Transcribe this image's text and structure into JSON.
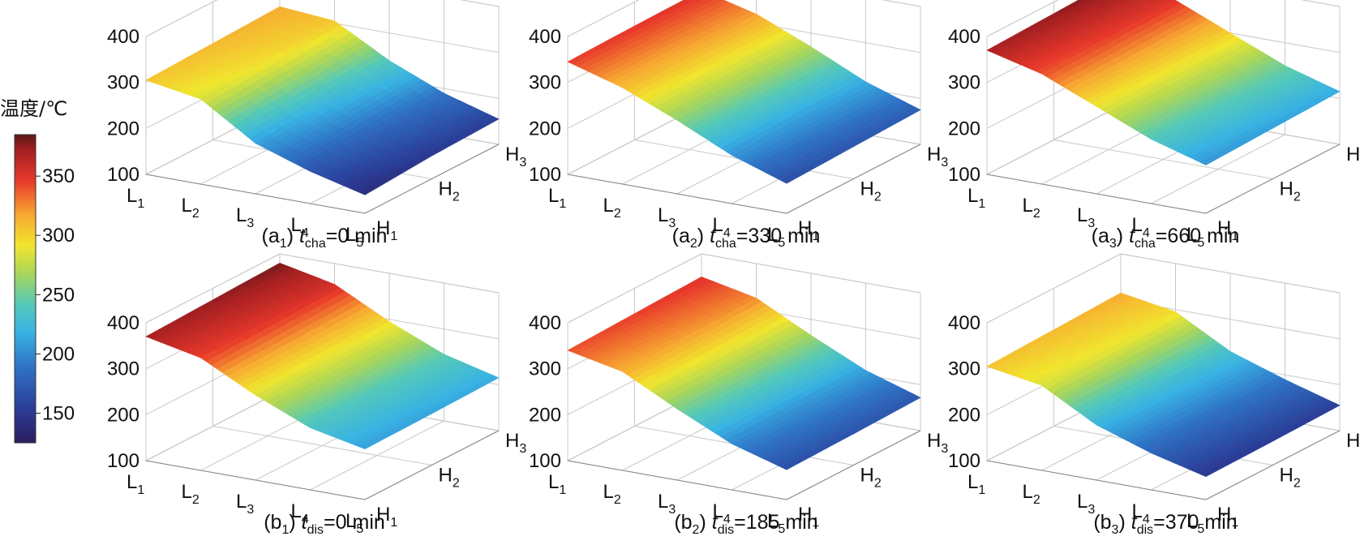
{
  "colorbar": {
    "title": "温度/℃",
    "min": 125,
    "max": 385,
    "ticks": [
      150,
      200,
      250,
      300,
      350
    ]
  },
  "zaxis": {
    "min": 100,
    "max": 400,
    "ticks": [
      100,
      200,
      300,
      400
    ]
  },
  "axes": {
    "L_ticks": [
      {
        "base": "L",
        "sub": "1"
      },
      {
        "base": "L",
        "sub": "2"
      },
      {
        "base": "L",
        "sub": "3"
      },
      {
        "base": "L",
        "sub": "4"
      },
      {
        "base": "L",
        "sub": "5"
      }
    ],
    "H_ticks": [
      {
        "base": "H",
        "sub": "1"
      },
      {
        "base": "H",
        "sub": "2"
      },
      {
        "base": "H",
        "sub": "3"
      }
    ]
  },
  "chart_data": [
    {
      "type": "surface",
      "panel_id": "a",
      "panel_sub": "1",
      "t_symbol": "t",
      "t_sub": "cha",
      "t_value": "=0 min",
      "L": [
        "L1",
        "L2",
        "L3",
        "L4",
        "L5"
      ],
      "H": [
        "H1",
        "H2",
        "H3"
      ],
      "z": [
        [
          305,
          285,
          210,
          170,
          140
        ],
        [
          310,
          295,
          225,
          180,
          150
        ],
        [
          315,
          305,
          240,
          190,
          155
        ]
      ]
    },
    {
      "type": "surface",
      "panel_id": "a",
      "panel_sub": "2",
      "t_symbol": "t",
      "t_sub": "cha",
      "t_value": "=330 min",
      "L": [
        "L1",
        "L2",
        "L3",
        "L4",
        "L5"
      ],
      "H": [
        "H1",
        "H2",
        "H3"
      ],
      "z": [
        [
          345,
          310,
          260,
          205,
          165
        ],
        [
          348,
          315,
          265,
          210,
          170
        ],
        [
          350,
          320,
          270,
          215,
          175
        ]
      ]
    },
    {
      "type": "surface",
      "panel_id": "a",
      "panel_sub": "3",
      "t_symbol": "t",
      "t_sub": "cha",
      "t_value": "=660 min",
      "L": [
        "L1",
        "L2",
        "L3",
        "L4",
        "L5"
      ],
      "H": [
        "H1",
        "H2",
        "H3"
      ],
      "z": [
        [
          370,
          340,
          290,
          240,
          205
        ],
        [
          375,
          345,
          295,
          245,
          210
        ],
        [
          380,
          350,
          300,
          250,
          215
        ]
      ]
    },
    {
      "type": "surface",
      "panel_id": "b",
      "panel_sub": "1",
      "t_symbol": "t",
      "t_sub": "dis",
      "t_value": "=0 min",
      "L": [
        "L1",
        "L2",
        "L3",
        "L4",
        "L5"
      ],
      "H": [
        "H1",
        "H2",
        "H3"
      ],
      "z": [
        [
          370,
          345,
          285,
          235,
          210
        ],
        [
          375,
          350,
          290,
          240,
          212
        ],
        [
          380,
          355,
          295,
          245,
          215
        ]
      ]
    },
    {
      "type": "surface",
      "panel_id": "b",
      "panel_sub": "2",
      "t_symbol": "t",
      "t_sub": "dis",
      "t_value": "=185 min",
      "L": [
        "L1",
        "L2",
        "L3",
        "L4",
        "L5"
      ],
      "H": [
        "H1",
        "H2",
        "H3"
      ],
      "z": [
        [
          340,
          315,
          255,
          200,
          165
        ],
        [
          345,
          320,
          260,
          205,
          168
        ],
        [
          350,
          325,
          265,
          210,
          172
        ]
      ]
    },
    {
      "type": "surface",
      "panel_id": "b",
      "panel_sub": "3",
      "t_symbol": "t",
      "t_sub": "dis",
      "t_value": "=370 min",
      "L": [
        "L1",
        "L2",
        "L3",
        "L4",
        "L5"
      ],
      "H": [
        "H1",
        "H2",
        "H3"
      ],
      "z": [
        [
          305,
          285,
          220,
          180,
          150
        ],
        [
          310,
          290,
          225,
          185,
          152
        ],
        [
          315,
          295,
          230,
          190,
          155
        ]
      ]
    }
  ]
}
